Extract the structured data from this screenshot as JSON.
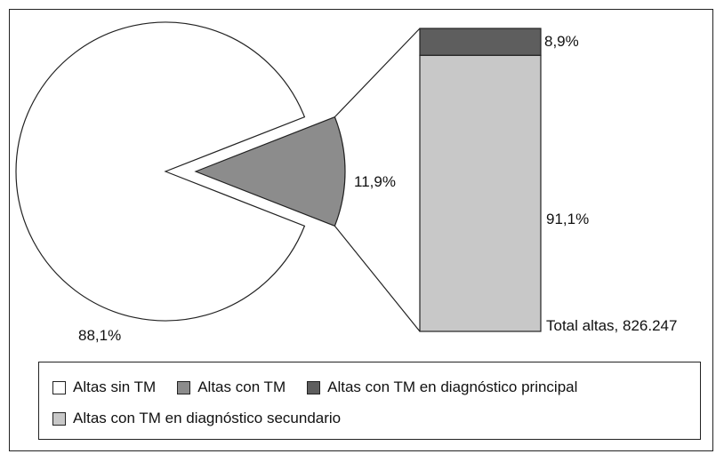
{
  "chart_data": {
    "type": "bar-of-pie",
    "pie": {
      "slices": [
        {
          "label": "Altas sin TM",
          "value": 88.1,
          "display": "88,1%",
          "color": "#ffffff"
        },
        {
          "label": "Altas con TM",
          "value": 11.9,
          "display": "11,9%",
          "color": "#8c8c8c",
          "exploded": true
        }
      ]
    },
    "bar": {
      "segments": [
        {
          "label": "Altas con TM en diagnóstico principal",
          "value": 8.9,
          "display": "8,9%",
          "color": "#5e5e5e"
        },
        {
          "label": "Altas con TM en diagnóstico secundario",
          "value": 91.1,
          "display": "91,1%",
          "color": "#c8c8c8"
        }
      ],
      "total_label": "Total altas, 826.247"
    },
    "legend": {
      "placement": "bottom",
      "rows": [
        [
          {
            "label": "Altas sin TM",
            "color": "#ffffff"
          },
          {
            "label": "Altas con TM",
            "color": "#8c8c8c"
          },
          {
            "label": "Altas con TM en diagnóstico principal",
            "color": "#5e5e5e"
          }
        ],
        [
          {
            "label": "Altas con TM en diagnóstico secundario",
            "color": "#c8c8c8"
          }
        ]
      ]
    }
  }
}
